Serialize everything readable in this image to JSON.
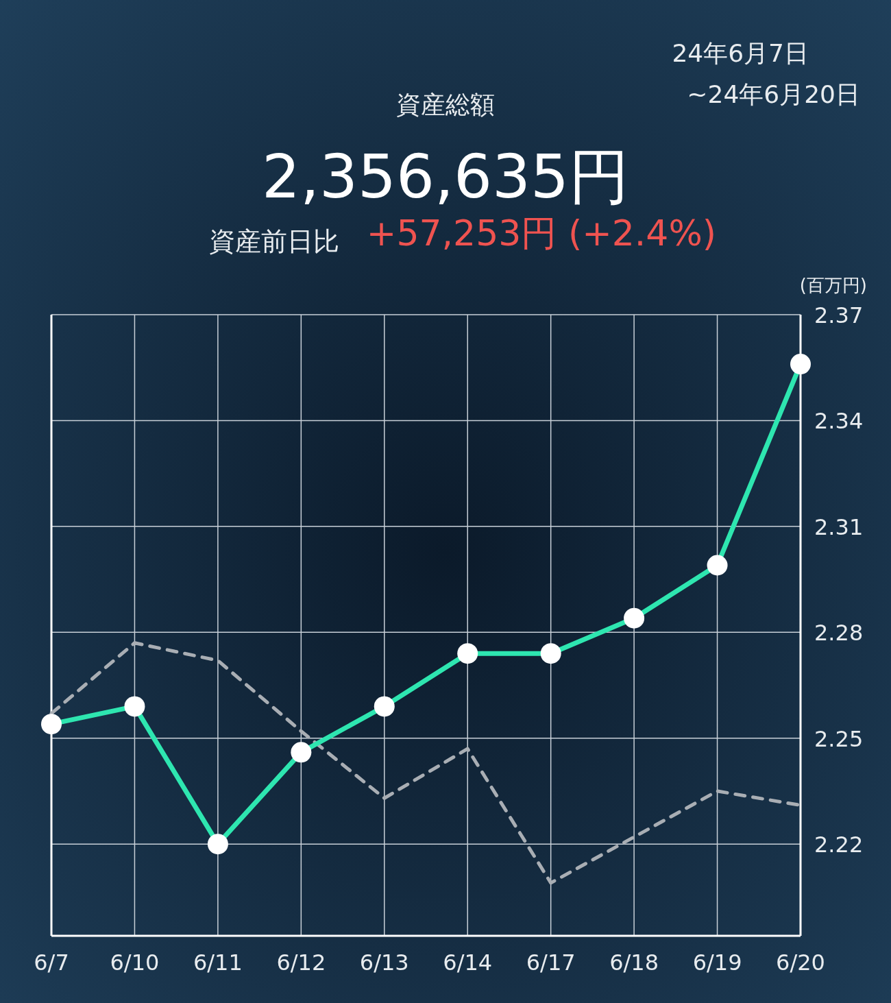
{
  "chart_data": {
    "type": "line",
    "title": "資産総額",
    "ylabel": "(百万円)",
    "annotations": [
      "2,356,635円",
      "資産前日比",
      "+57,253円 (+2.4%)",
      "24年6月7日",
      "~24年6月20日"
    ],
    "categories": [
      "6/7",
      "6/10",
      "6/11",
      "6/12",
      "6/13",
      "6/14",
      "6/17",
      "6/18",
      "6/19",
      "6/20"
    ],
    "series": [
      {
        "color": "#2ee6b0",
        "marker": "circle",
        "line_style": "solid",
        "values": [
          2.254,
          2.259,
          2.22,
          2.246,
          2.259,
          2.274,
          2.274,
          2.284,
          2.299,
          2.356
        ]
      },
      {
        "color": "#a9aeb4",
        "marker": "none",
        "line_style": "dashed",
        "values": [
          2.257,
          2.277,
          2.272,
          2.252,
          2.233,
          2.247,
          2.209,
          2.222,
          2.235,
          2.231
        ]
      }
    ],
    "ylim": [
      2.194,
      2.37
    ],
    "yticks": [
      2.22,
      2.25,
      2.28,
      2.31,
      2.34,
      2.37
    ],
    "grid": true
  }
}
